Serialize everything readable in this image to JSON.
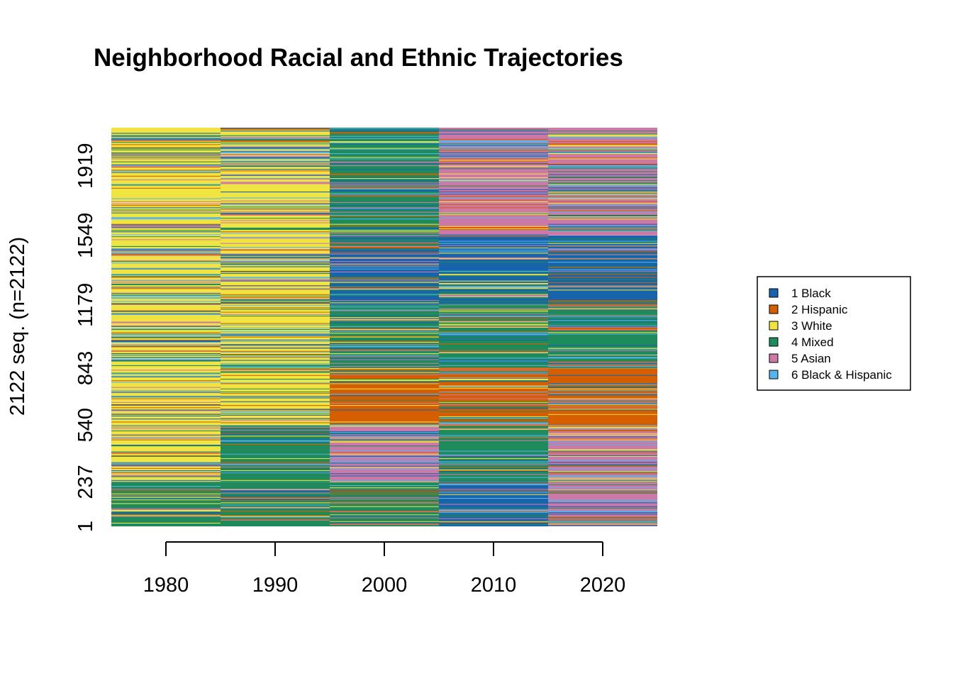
{
  "chart_data": {
    "type": "heatmap",
    "title": "Neighborhood Racial and Ethnic Trajectories",
    "xlabel": "",
    "ylabel": "2122 seq. (n=2122)",
    "n_sequences": 2122,
    "x_ticks": [
      "1980",
      "1990",
      "2000",
      "2010",
      "2020"
    ],
    "y_ticks": [
      "1",
      "237",
      "540",
      "843",
      "1179",
      "1549",
      "1919"
    ],
    "legend_position": "right",
    "states": [
      {
        "code": 1,
        "label": "1 Black",
        "color": "#1764ab"
      },
      {
        "code": 2,
        "label": "2 Hispanic",
        "color": "#d55e00"
      },
      {
        "code": 3,
        "label": "3 White",
        "color": "#f0e442"
      },
      {
        "code": 4,
        "label": "4 Mixed",
        "color": "#1f8a5b"
      },
      {
        "code": 5,
        "label": "5 Asian",
        "color": "#cc79a7"
      },
      {
        "code": 6,
        "label": "6 Black & Hispanic",
        "color": "#56b4e9"
      }
    ],
    "blocks": [
      {
        "from": 1,
        "to": 236,
        "dominant": [
          4,
          4,
          4,
          1,
          5
        ]
      },
      {
        "from": 237,
        "to": 539,
        "dominant": [
          3,
          4,
          5,
          4,
          5
        ]
      },
      {
        "from": 540,
        "to": 842,
        "dominant": [
          3,
          3,
          2,
          2,
          2
        ]
      },
      {
        "from": 843,
        "to": 1178,
        "dominant": [
          3,
          3,
          4,
          4,
          4
        ]
      },
      {
        "from": 1179,
        "to": 1548,
        "dominant": [
          3,
          3,
          1,
          1,
          1
        ]
      },
      {
        "from": 1549,
        "to": 1918,
        "dominant": [
          3,
          3,
          4,
          5,
          5
        ]
      },
      {
        "from": 1919,
        "to": 2122,
        "dominant": [
          3,
          3,
          4,
          5,
          5
        ]
      }
    ]
  }
}
